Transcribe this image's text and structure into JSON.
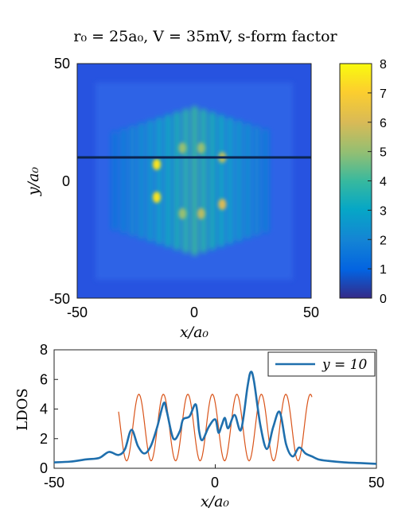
{
  "colors": {
    "series_blue": "#1f6fad",
    "model_orange": "#d9541a",
    "line_cut": "#0b2450"
  },
  "chart_data": [
    {
      "type": "heatmap",
      "title": "r₀ = 25a₀, V = 35mV, s-form factor",
      "xlabel": "x/a₀",
      "ylabel": "y/a₀",
      "xlim": [
        -50,
        50
      ],
      "ylim": [
        -50,
        50
      ],
      "xticks": [
        "-50",
        "0",
        "50"
      ],
      "yticks": [
        "50",
        "0",
        "-50"
      ],
      "colorbar": {
        "range": [
          0,
          8
        ],
        "ticks": [
          "8",
          "7",
          "6",
          "5",
          "4",
          "3",
          "2",
          "1",
          "0"
        ],
        "colormap": "parula"
      },
      "overlay_line": {
        "y": 10,
        "x_range": [
          -50,
          50
        ]
      },
      "hotspots": [
        {
          "x": -16,
          "y": 7,
          "value": 7.5
        },
        {
          "x": -16,
          "y": -7,
          "value": 7.5
        },
        {
          "x": 12,
          "y": -10,
          "value": 6.0
        },
        {
          "x": 12,
          "y": 10,
          "value": 5.5
        },
        {
          "x": 3,
          "y": -14,
          "value": 5.5
        },
        {
          "x": -5,
          "y": -14,
          "value": 5.0
        },
        {
          "x": 3,
          "y": 14,
          "value": 5.0
        },
        {
          "x": -5,
          "y": 14,
          "value": 5.0
        }
      ],
      "background_value": 1.2
    },
    {
      "type": "line",
      "xlabel": "x/a₀",
      "ylabel": "LDOS",
      "xlim": [
        -50,
        50
      ],
      "ylim": [
        0,
        8
      ],
      "xticks": [
        "-50",
        "0",
        "50"
      ],
      "yticks": [
        "8",
        "6",
        "4",
        "2",
        "0"
      ],
      "legend": {
        "position": "top-right",
        "entries": [
          "y = 10"
        ]
      },
      "series": [
        {
          "name": "y = 10",
          "x": [
            -50,
            -45,
            -40,
            -36,
            -33,
            -30,
            -28,
            -26,
            -24,
            -22,
            -20,
            -18,
            -16,
            -15,
            -13,
            -11,
            -10,
            -8,
            -6,
            -5,
            -4,
            -2,
            0,
            1,
            2,
            3,
            4,
            6,
            8,
            10,
            11,
            12,
            14,
            16,
            18,
            20,
            22,
            24,
            26,
            28,
            30,
            32,
            35,
            40,
            45,
            50
          ],
          "y": [
            0.4,
            0.45,
            0.6,
            0.7,
            1.1,
            0.9,
            1.3,
            2.6,
            1.5,
            1.0,
            1.5,
            2.8,
            4.4,
            3.8,
            2.0,
            2.5,
            3.3,
            3.5,
            4.3,
            2.5,
            1.9,
            2.8,
            3.3,
            2.4,
            2.9,
            3.4,
            2.7,
            3.6,
            2.6,
            5.5,
            6.5,
            5.9,
            2.9,
            1.3,
            2.8,
            3.8,
            1.6,
            0.8,
            1.4,
            1.0,
            0.8,
            0.6,
            0.5,
            0.4,
            0.35,
            0.3
          ]
        }
      ],
      "reference_curve": {
        "x_range": [
          -30,
          30
        ],
        "period": 7.6,
        "phase_x": -23.7,
        "min": 0.5,
        "max": 5.0
      }
    }
  ]
}
